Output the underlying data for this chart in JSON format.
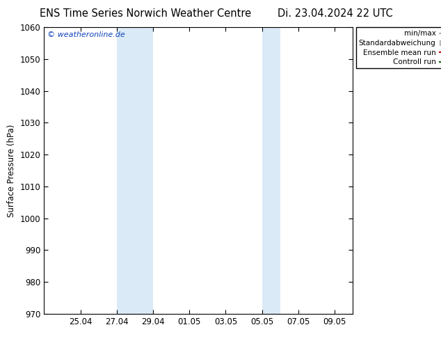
{
  "title_left": "ENS Time Series Norwich Weather Centre",
  "title_right": "Di. 23.04.2024 22 UTC",
  "ylabel": "Surface Pressure (hPa)",
  "ylim": [
    970,
    1060
  ],
  "yticks": [
    970,
    980,
    990,
    1000,
    1010,
    1020,
    1030,
    1040,
    1050,
    1060
  ],
  "x_start": "2024-04-23",
  "x_end": "2024-05-10",
  "xtick_labels": [
    "25.04",
    "27.04",
    "29.04",
    "01.05",
    "03.05",
    "05.05",
    "07.05",
    "09.05"
  ],
  "xtick_dates": [
    "2024-04-25",
    "2024-04-27",
    "2024-04-29",
    "2024-05-01",
    "2024-05-03",
    "2024-05-05",
    "2024-05-07",
    "2024-05-09"
  ],
  "shaded_bands": [
    {
      "xmin": "2024-04-27",
      "xmax": "2024-04-29",
      "color": "#daeaf7"
    },
    {
      "xmin": "2024-05-05",
      "xmax": "2024-05-06",
      "color": "#daeaf7"
    }
  ],
  "watermark": "© weatheronline.de",
  "watermark_color": "#1144bb",
  "bg_color": "#ffffff",
  "plot_bg_color": "#ffffff",
  "title_fontsize": 10.5,
  "tick_fontsize": 8.5,
  "ylabel_fontsize": 8.5,
  "legend_fontsize": 7.5
}
